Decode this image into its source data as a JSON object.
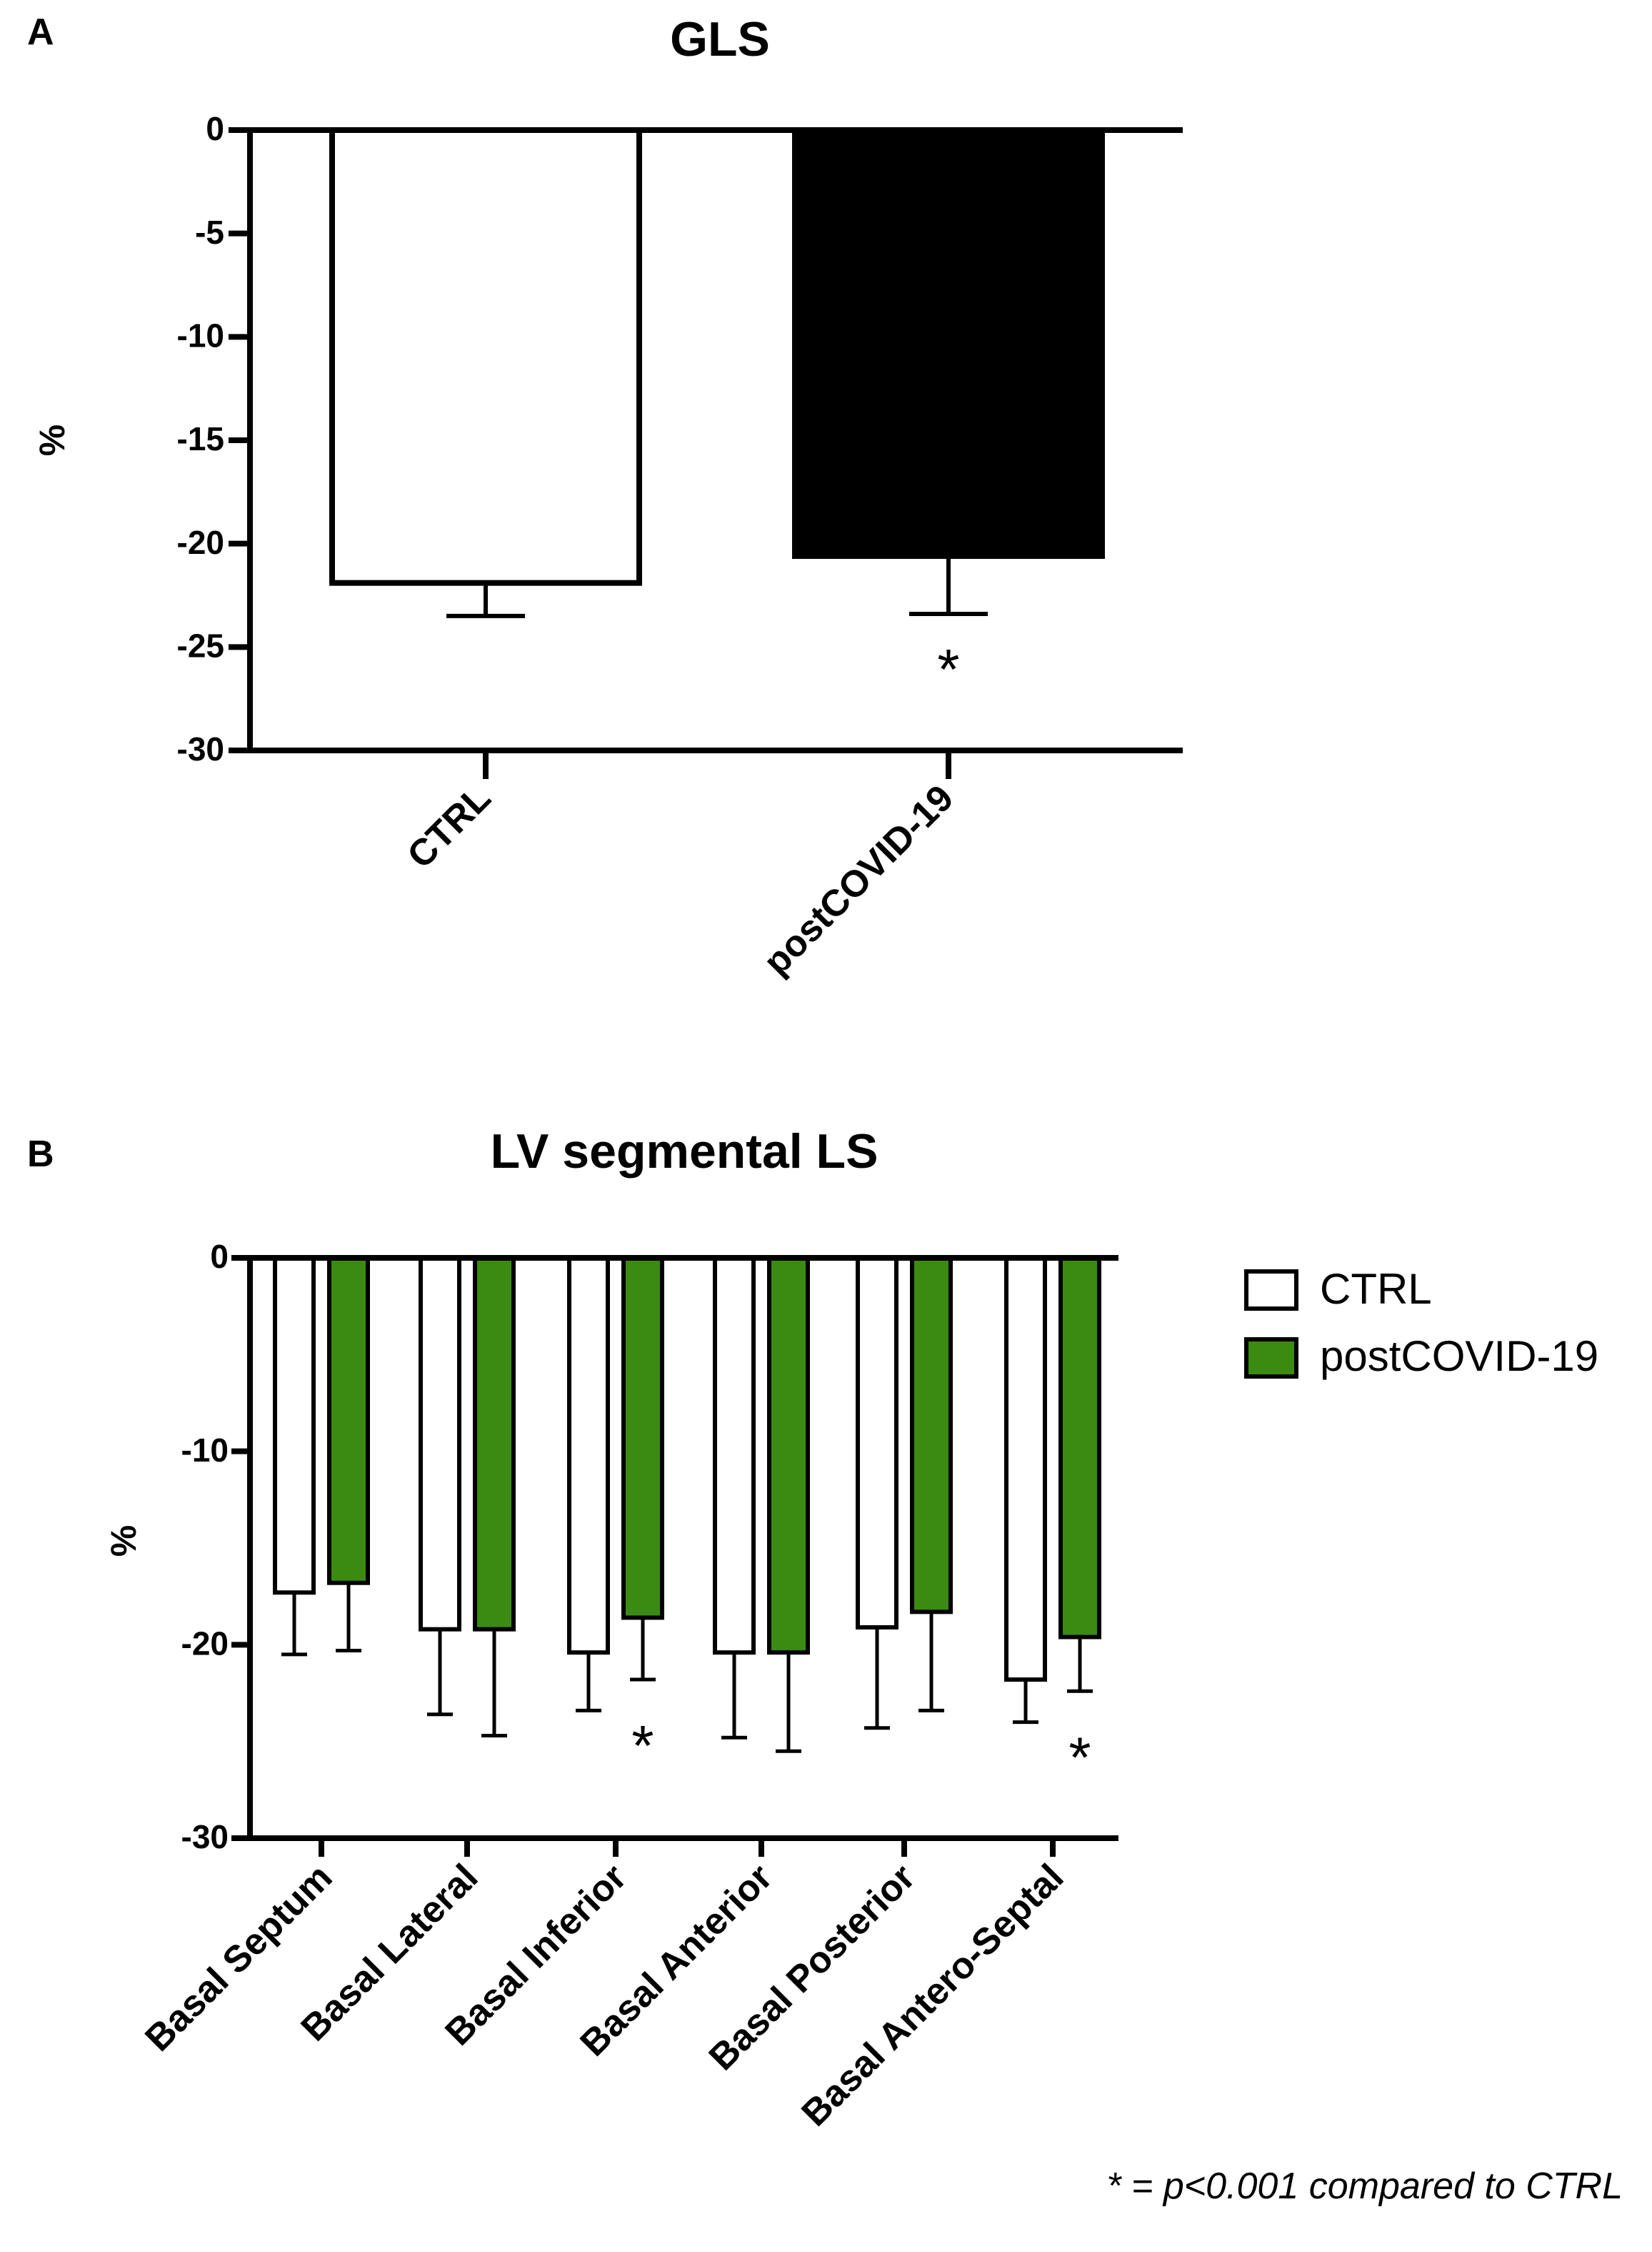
{
  "chart_data": [
    {
      "panel": "A",
      "type": "bar",
      "title": "GLS",
      "ylabel": "%",
      "xlabel": "",
      "ylim": [
        -30,
        0
      ],
      "yticks": [
        "0",
        "-5",
        "-10",
        "-15",
        "-20",
        "-25",
        "-30"
      ],
      "categories": [
        "CTRL",
        "postCOVID-19"
      ],
      "values": [
        -21.9,
        -20.6
      ],
      "error_low": [
        -23.5,
        -23.4
      ],
      "fills": [
        "#ffffff",
        "#000000"
      ],
      "significance": [
        "",
        "*"
      ]
    },
    {
      "panel": "B",
      "type": "bar",
      "title": "LV segmental LS",
      "ylabel": "%",
      "xlabel": "",
      "ylim": [
        -30,
        0
      ],
      "yticks": [
        "0",
        "-10",
        "-20",
        "-30"
      ],
      "categories": [
        "Basal Septum",
        "Basal Lateral",
        "Basal Inferior",
        "Basal  Anterior",
        "Basal  Posterior",
        "Basal  Antero-Septal"
      ],
      "series": [
        {
          "name": "CTRL",
          "color": "#ffffff",
          "values": [
            -17.3,
            -19.2,
            -20.4,
            -20.4,
            -19.1,
            -21.8
          ],
          "error_low": [
            -20.5,
            -23.6,
            -23.4,
            -24.8,
            -24.3,
            -24.0
          ]
        },
        {
          "name": "postCOVID-19",
          "color": "#3b8a12",
          "values": [
            -16.8,
            -19.2,
            -18.6,
            -20.4,
            -18.3,
            -19.6
          ],
          "error_low": [
            -20.3,
            -24.7,
            -21.8,
            -25.5,
            -23.4,
            -22.4
          ]
        }
      ],
      "significance": [
        "",
        "",
        "*",
        "",
        "",
        "*"
      ],
      "legend_position": "top-right",
      "footnote": "* = p<0.001 compared to CTRL"
    }
  ]
}
